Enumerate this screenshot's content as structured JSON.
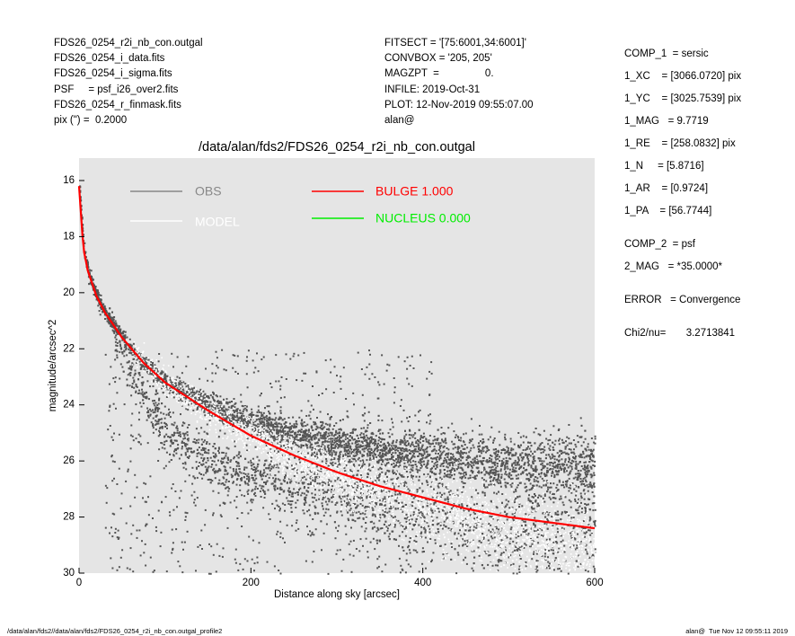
{
  "header_left": [
    "FDS26_0254_r2i_nb_con.outgal",
    "FDS26_0254_i_data.fits",
    "FDS26_0254_i_sigma.fits",
    "PSF     = psf_i26_over2.fits",
    "FDS26_0254_r_finmask.fits",
    "pix (\") =  0.2000"
  ],
  "header_mid": [
    "FITSECT = '[75:6001,34:6001]'",
    "CONVBOX = '205, 205'",
    "MAGZPT  =                0.",
    "INFILE: 2019-Oct-31",
    "PLOT: 12-Nov-2019 09:55:07.00",
    "alan@"
  ],
  "header_right": {
    "comp1": [
      "COMP_1  = sersic",
      "1_XC    = [3066.0720] pix",
      "1_YC    = [3025.7539] pix",
      "1_MAG   = 9.7719",
      "1_RE    = [258.0832] pix",
      "1_N     = [5.8716]",
      "1_AR    = [0.9724]",
      "1_PA    = [56.7744]"
    ],
    "comp2": [
      "COMP_2  = psf",
      "2_MAG   = *35.0000*"
    ],
    "error": "ERROR   = Convergence",
    "chi2": "Chi2/nu=       3.2713841"
  },
  "footer_left": "/data/alan/fds2//data/alan/fds2/FDS26_0254_r2i_nb_con.outgal_profile2",
  "footer_right": "alan@  Tue Nov 12 09:55:11 2019",
  "colors": {
    "panel": "#e5e5e5",
    "obs": "#555555",
    "model": "#ffffff",
    "bulge": "#ff0000",
    "nucleus": "#00ee00"
  },
  "chart_data": {
    "type": "scatter",
    "title": "/data/alan/fds2/FDS26_0254_r2i_nb_con.outgal",
    "xlabel": "Distance along sky [arcsec]",
    "ylabel": "magnitude/arcsec^2",
    "xlim": [
      0,
      600
    ],
    "ylim": [
      30,
      15.2
    ],
    "y_inverted": true,
    "xticks": [
      0,
      200,
      400,
      600
    ],
    "yticks": [
      16,
      18,
      20,
      22,
      24,
      26,
      28,
      30
    ],
    "legend": [
      {
        "label": "OBS",
        "color": "#888888"
      },
      {
        "label": "MODEL",
        "color": "#ffffff"
      },
      {
        "label": "BULGE  1.000",
        "color": "#ff0000"
      },
      {
        "label": "NUCLEUS  0.000",
        "color": "#00ee00"
      }
    ],
    "bulge_curve": {
      "x": [
        0,
        5,
        10,
        20,
        30,
        50,
        75,
        100,
        150,
        200,
        250,
        300,
        350,
        400,
        450,
        500,
        550,
        600
      ],
      "y": [
        16.2,
        18.4,
        19.2,
        20.1,
        20.7,
        21.6,
        22.5,
        23.2,
        24.2,
        25.1,
        25.8,
        26.4,
        26.9,
        27.3,
        27.7,
        28.0,
        28.2,
        28.4
      ]
    },
    "obs_components": [
      {
        "name": "main",
        "x": [
          0,
          5,
          10,
          20,
          30,
          50,
          75,
          100,
          150,
          200,
          250,
          300,
          350,
          400,
          450,
          500,
          550,
          600
        ],
        "y": [
          16.2,
          18.4,
          19.2,
          20.1,
          20.7,
          21.6,
          22.5,
          23.2,
          24.0,
          24.6,
          25.0,
          25.3,
          25.6,
          25.8,
          25.9,
          26.0,
          26.1,
          26.2
        ]
      },
      {
        "name": "faint",
        "x": [
          40,
          60,
          80,
          100,
          130,
          160,
          200,
          250,
          300,
          350,
          400,
          450,
          500
        ],
        "y": [
          21.6,
          22.8,
          23.9,
          24.8,
          25.6,
          26.1,
          26.5,
          26.8,
          27.1,
          27.4,
          27.8,
          28.2,
          28.6
        ]
      }
    ]
  }
}
